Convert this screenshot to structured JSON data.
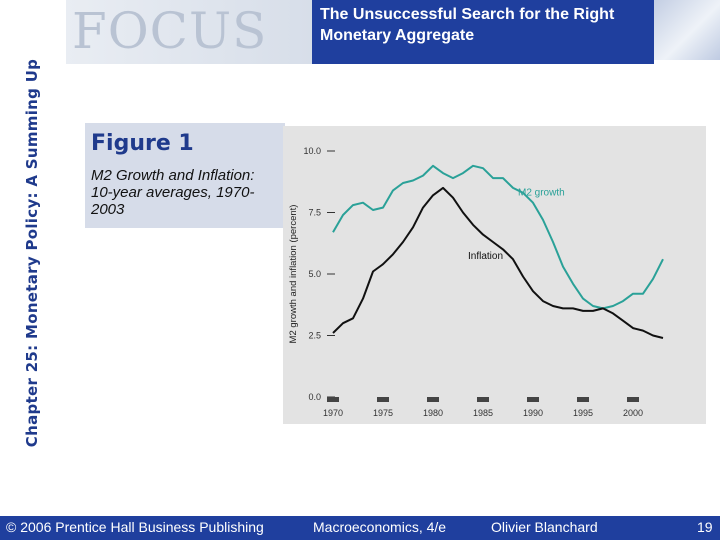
{
  "side_title": "Chapter 25: Monetary Policy: A Summing Up",
  "banner": {
    "logo_text": "FOCUS"
  },
  "slide_title": "The Unsuccessful Search for the Right Monetary Aggregate",
  "figure": {
    "title": "Figure 1",
    "subtitle": "M2 Growth and Inflation: 10-year averages, 1970-2003"
  },
  "chart_data": {
    "type": "line",
    "title": "",
    "xlabel": "",
    "ylabel": "M2 growth and inflation (percent)",
    "xlim": [
      1970,
      2005
    ],
    "ylim": [
      0,
      10
    ],
    "x_ticks": [
      "1970",
      "1975",
      "1980",
      "1985",
      "1990",
      "1995",
      "2000"
    ],
    "y_ticks": [
      "0.0",
      "2.5",
      "5.0",
      "7.5",
      "10.0"
    ],
    "grid": false,
    "legend": "inline labels",
    "series": [
      {
        "name": "M2 growth",
        "color": "#2aa198",
        "x": [
          1970,
          1971,
          1972,
          1973,
          1974,
          1975,
          1976,
          1977,
          1978,
          1979,
          1980,
          1981,
          1982,
          1983,
          1984,
          1985,
          1986,
          1987,
          1988,
          1989,
          1990,
          1991,
          1992,
          1993,
          1994,
          1995,
          1996,
          1997,
          1998,
          1999,
          2000,
          2001,
          2002,
          2003
        ],
        "values": [
          6.7,
          7.4,
          7.8,
          7.9,
          7.6,
          7.7,
          8.4,
          8.7,
          8.8,
          9.0,
          9.4,
          9.1,
          8.9,
          9.1,
          9.4,
          9.3,
          8.9,
          8.9,
          8.5,
          8.3,
          7.9,
          7.2,
          6.3,
          5.3,
          4.6,
          4.0,
          3.7,
          3.6,
          3.7,
          3.9,
          4.2,
          4.2,
          4.8,
          5.6
        ]
      },
      {
        "name": "Inflation",
        "color": "#111111",
        "x": [
          1970,
          1971,
          1972,
          1973,
          1974,
          1975,
          1976,
          1977,
          1978,
          1979,
          1980,
          1981,
          1982,
          1983,
          1984,
          1985,
          1986,
          1987,
          1988,
          1989,
          1990,
          1991,
          1992,
          1993,
          1994,
          1995,
          1996,
          1997,
          1998,
          1999,
          2000,
          2001,
          2002,
          2003
        ],
        "values": [
          2.6,
          3.0,
          3.2,
          4.0,
          5.1,
          5.4,
          5.8,
          6.3,
          6.9,
          7.7,
          8.2,
          8.5,
          8.1,
          7.5,
          7.0,
          6.6,
          6.3,
          6.0,
          5.6,
          4.9,
          4.3,
          3.9,
          3.7,
          3.6,
          3.6,
          3.5,
          3.5,
          3.6,
          3.4,
          3.1,
          2.8,
          2.7,
          2.5,
          2.4
        ]
      }
    ],
    "annotations": [
      {
        "text": "M2 growth",
        "x": 1988.5,
        "y": 8.2,
        "color": "#2aa198"
      },
      {
        "text": "Inflation",
        "x": 1983.5,
        "y": 5.6,
        "color": "#111111"
      }
    ]
  },
  "footer": {
    "copyright": "© 2006 Prentice Hall Business Publishing",
    "book": "Macroeconomics, 4/e",
    "author": "Olivier Blanchard",
    "page": "19"
  }
}
